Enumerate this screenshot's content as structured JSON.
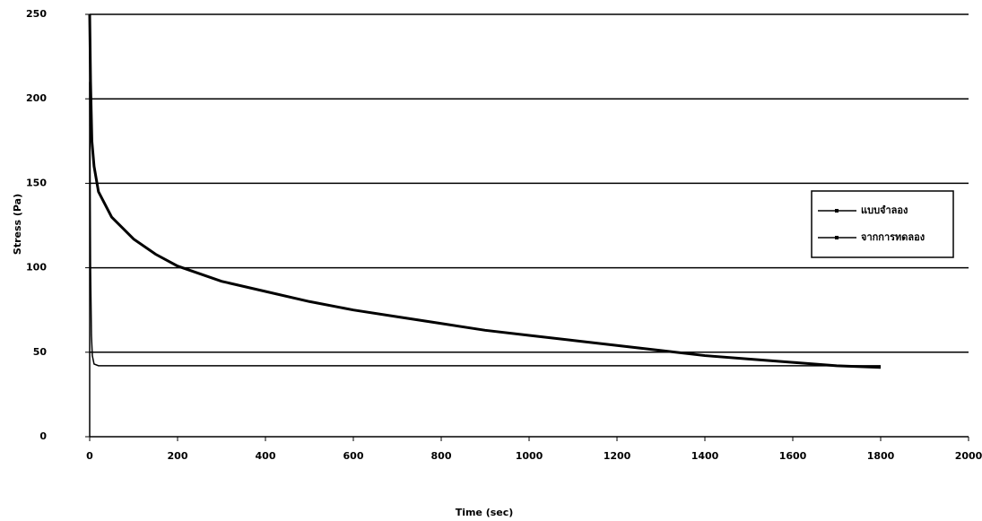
{
  "chart_data": {
    "type": "line",
    "x_label": "Time (sec)",
    "y_label": "Stress (Pa)",
    "xlim": [
      0,
      2000
    ],
    "xticks": [
      0,
      200,
      400,
      600,
      800,
      1000,
      1200,
      1400,
      1600,
      1800,
      2000
    ],
    "ylim": [
      0,
      250
    ],
    "yticks": [
      0,
      50,
      100,
      150,
      200,
      250
    ],
    "grid": true,
    "legend": "right",
    "series": [
      {
        "name": "แบบจำลอง",
        "color": "#000000",
        "x": [
          0,
          2,
          4,
          6,
          10,
          20,
          100,
          500,
          1000,
          1500,
          1800
        ],
        "values": [
          210,
          100,
          60,
          48,
          43,
          42,
          42,
          42,
          42,
          42,
          42
        ]
      },
      {
        "name": "จากการทดลอง",
        "color": "#000000",
        "x": [
          0,
          2,
          5,
          10,
          20,
          50,
          100,
          150,
          200,
          300,
          400,
          500,
          600,
          700,
          800,
          900,
          1000,
          1100,
          1200,
          1300,
          1400,
          1500,
          1600,
          1700,
          1800
        ],
        "values": [
          250,
          210,
          175,
          160,
          145,
          130,
          117,
          108,
          101,
          92,
          86,
          80,
          75,
          71,
          67,
          63,
          60,
          57,
          54,
          51,
          48,
          46,
          44,
          42,
          41
        ]
      }
    ]
  }
}
